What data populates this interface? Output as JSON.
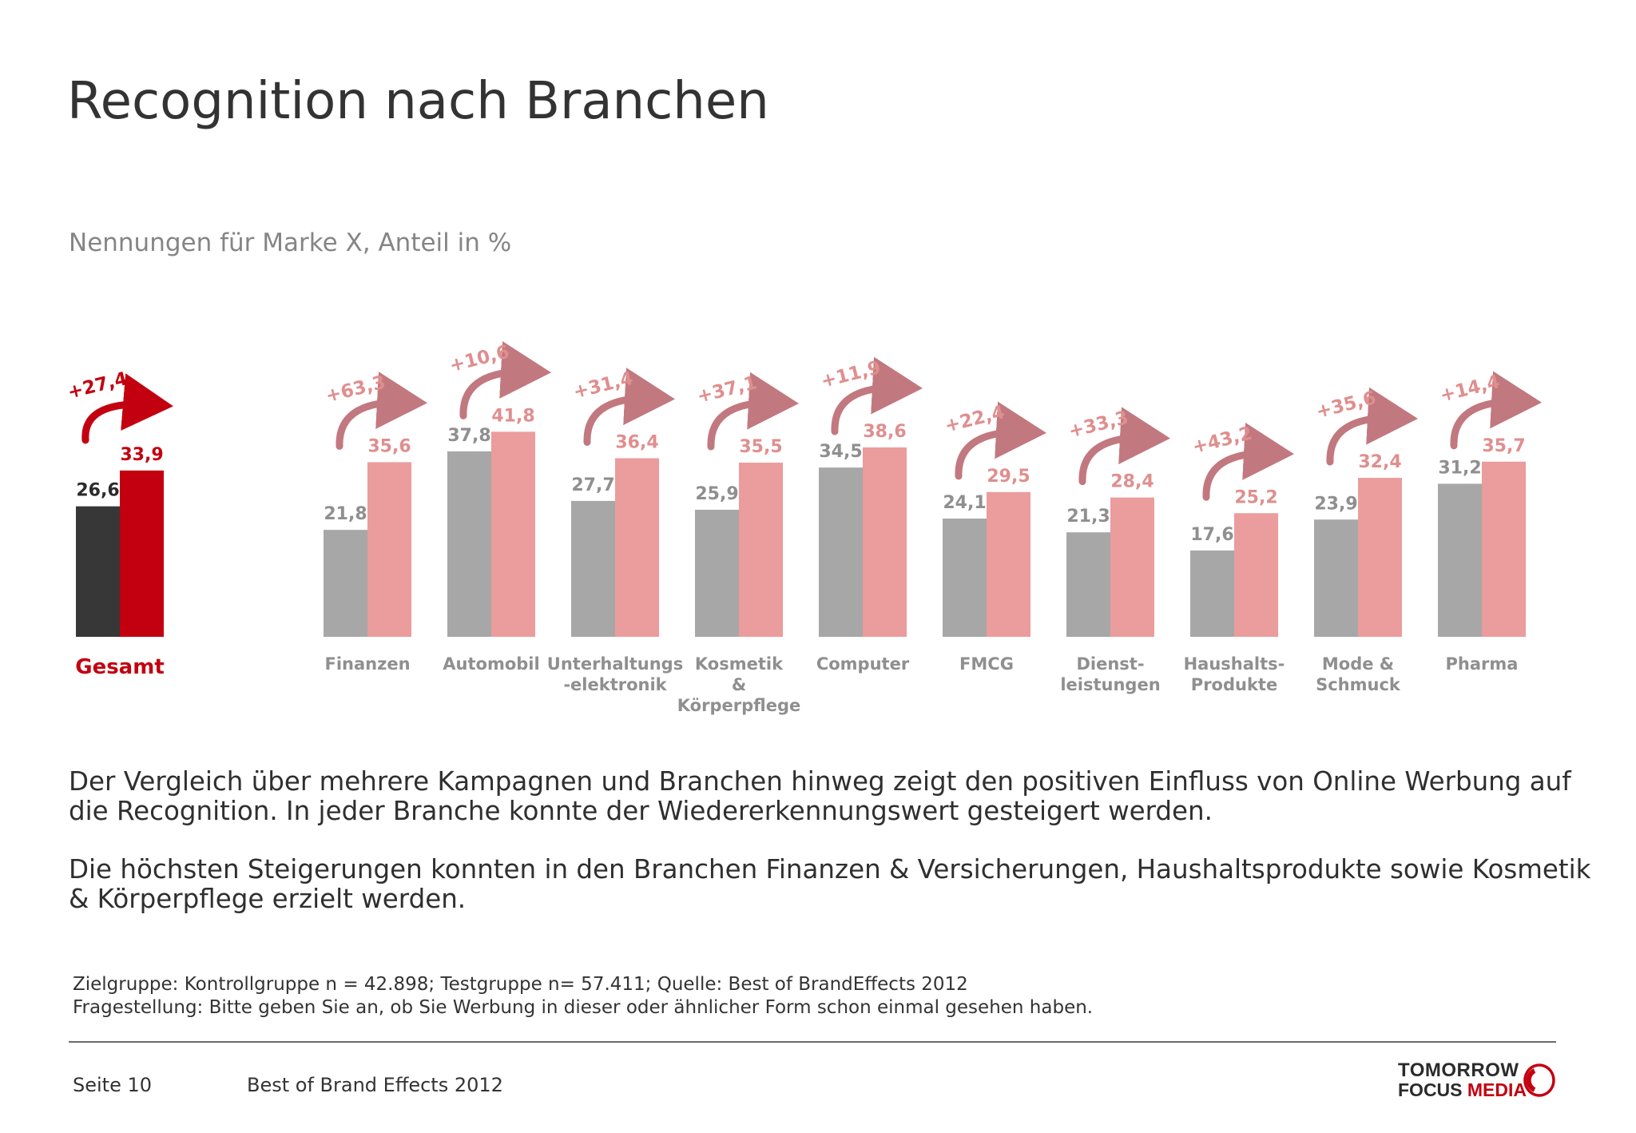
{
  "title": "Recognition nach Branchen",
  "subtitle": "Nennungen für Marke X, Anteil in %",
  "colors": {
    "total_control": "#373737",
    "total_test": "#c3000f",
    "total_label": "#c3000f",
    "industry_control": "#a8a7a8",
    "industry_test": "#eb9c9c",
    "industry_label": "#8f8f8f",
    "test_label": "#e08e8e",
    "uplift_label": "#e08e8e",
    "arrow": "#c2787f"
  },
  "chart_data": {
    "type": "bar",
    "unit": "%",
    "series": [
      {
        "values": [
          26.6,
          21.8,
          37.8,
          27.7,
          25.9,
          34.5,
          24.1,
          21.3,
          17.6,
          23.9,
          31.2
        ]
      },
      {
        "values": [
          33.9,
          35.6,
          41.8,
          36.4,
          35.5,
          38.6,
          29.5,
          28.4,
          25.2,
          32.4,
          35.7
        ]
      }
    ],
    "categories": [
      [
        "Gesamt"
      ],
      [
        "Finanzen"
      ],
      [
        "Automobil"
      ],
      [
        "Unterhaltungs",
        "-elektronik"
      ],
      [
        "Kosmetik",
        "&",
        "Körperpflege"
      ],
      [
        "Computer"
      ],
      [
        "FMCG"
      ],
      [
        "Dienst-",
        "leistungen"
      ],
      [
        "Haushalts-",
        "Produkte"
      ],
      [
        "Mode &",
        "Schmuck"
      ],
      [
        "Pharma"
      ]
    ],
    "value_labels": [
      [
        "26,6",
        "21,8",
        "37,8",
        "27,7",
        "25,9",
        "34,5",
        "24,1",
        "21,3",
        "17,6",
        "23,9",
        "31,2"
      ],
      [
        "33,9",
        "35,6",
        "41,8",
        "36,4",
        "35,5",
        "38,6",
        "29,5",
        "28,4",
        "25,2",
        "32,4",
        "35,7"
      ]
    ],
    "uplift_labels": [
      "+27,4",
      "+63,3",
      "+10,6",
      "+31,4",
      "+37,1",
      "+11,9",
      "+22,4",
      "+33,3",
      "+43,2",
      "+35,6",
      "+14,4"
    ],
    "ylim": [
      0,
      45
    ],
    "grid": false,
    "legend": "none"
  },
  "body": {
    "paragraph_1": "Der Vergleich über mehrere Kampagnen und Branchen hinweg zeigt den positiven Einfluss von Online Werbung auf die Recognition. In jeder Branche konnte der Wiedererkennungswert gesteigert werden.",
    "paragraph_2": "Die höchsten Steigerungen konnten in den Branchen Finanzen & Versicherungen, Haushaltsprodukte sowie Kosmetik & Körperpflege erzielt werden."
  },
  "footnote": {
    "line_1": "Zielgruppe: Kontrollgruppe n = 42.898; Testgruppe n= 57.411; Quelle: Best of BrandEffects 2012",
    "line_2": "Fragestellung: Bitte geben Sie an, ob Sie Werbung in dieser oder ähnlicher Form schon einmal gesehen haben."
  },
  "footer": {
    "page_label": "Seite 10",
    "document_title": "Best of Brand Effects 2012"
  },
  "logo": {
    "line_1": "TOMORROW",
    "line_2a": "FOCUS",
    "line_2b": "MEDIA"
  }
}
